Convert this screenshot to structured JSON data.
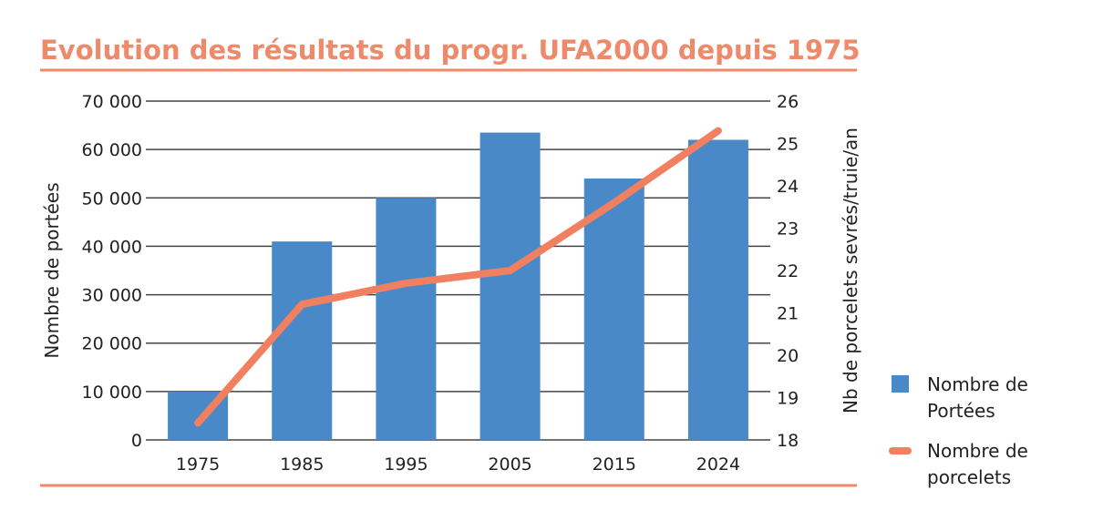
{
  "chart_data": {
    "type": "bar+line",
    "title": "Evolution des résultats du progr. UFA2000 depuis 1975",
    "categories": [
      "1975",
      "1985",
      "1995",
      "2005",
      "2015",
      "2024"
    ],
    "ylabel": "Nombre de portées",
    "y2label": "Nb de porcelets sevrés/truie/an",
    "ylim": [
      0,
      70000
    ],
    "y2lim": [
      18,
      26
    ],
    "yticks": [
      "0",
      "10 000",
      "20 000",
      "30 000",
      "40 000",
      "50 000",
      "60 000",
      "70 000"
    ],
    "y2ticks": [
      "18",
      "19",
      "20",
      "21",
      "22",
      "23",
      "24",
      "25",
      "26"
    ],
    "grid": true,
    "legend_position": "right",
    "series": [
      {
        "name": "Nombre de Portées",
        "legend_lines": [
          "Nombre de",
          "Portées"
        ],
        "type": "bar",
        "axis": "left",
        "color": "#4a89c8",
        "values": [
          10000,
          41000,
          50000,
          63500,
          54000,
          62000
        ]
      },
      {
        "name": "Nombre de porcelets",
        "legend_lines": [
          "Nombre de",
          "porcelets"
        ],
        "type": "line",
        "axis": "right",
        "color": "#f08060",
        "values": [
          18.4,
          21.2,
          21.7,
          22.0,
          23.6,
          25.3
        ]
      }
    ]
  }
}
